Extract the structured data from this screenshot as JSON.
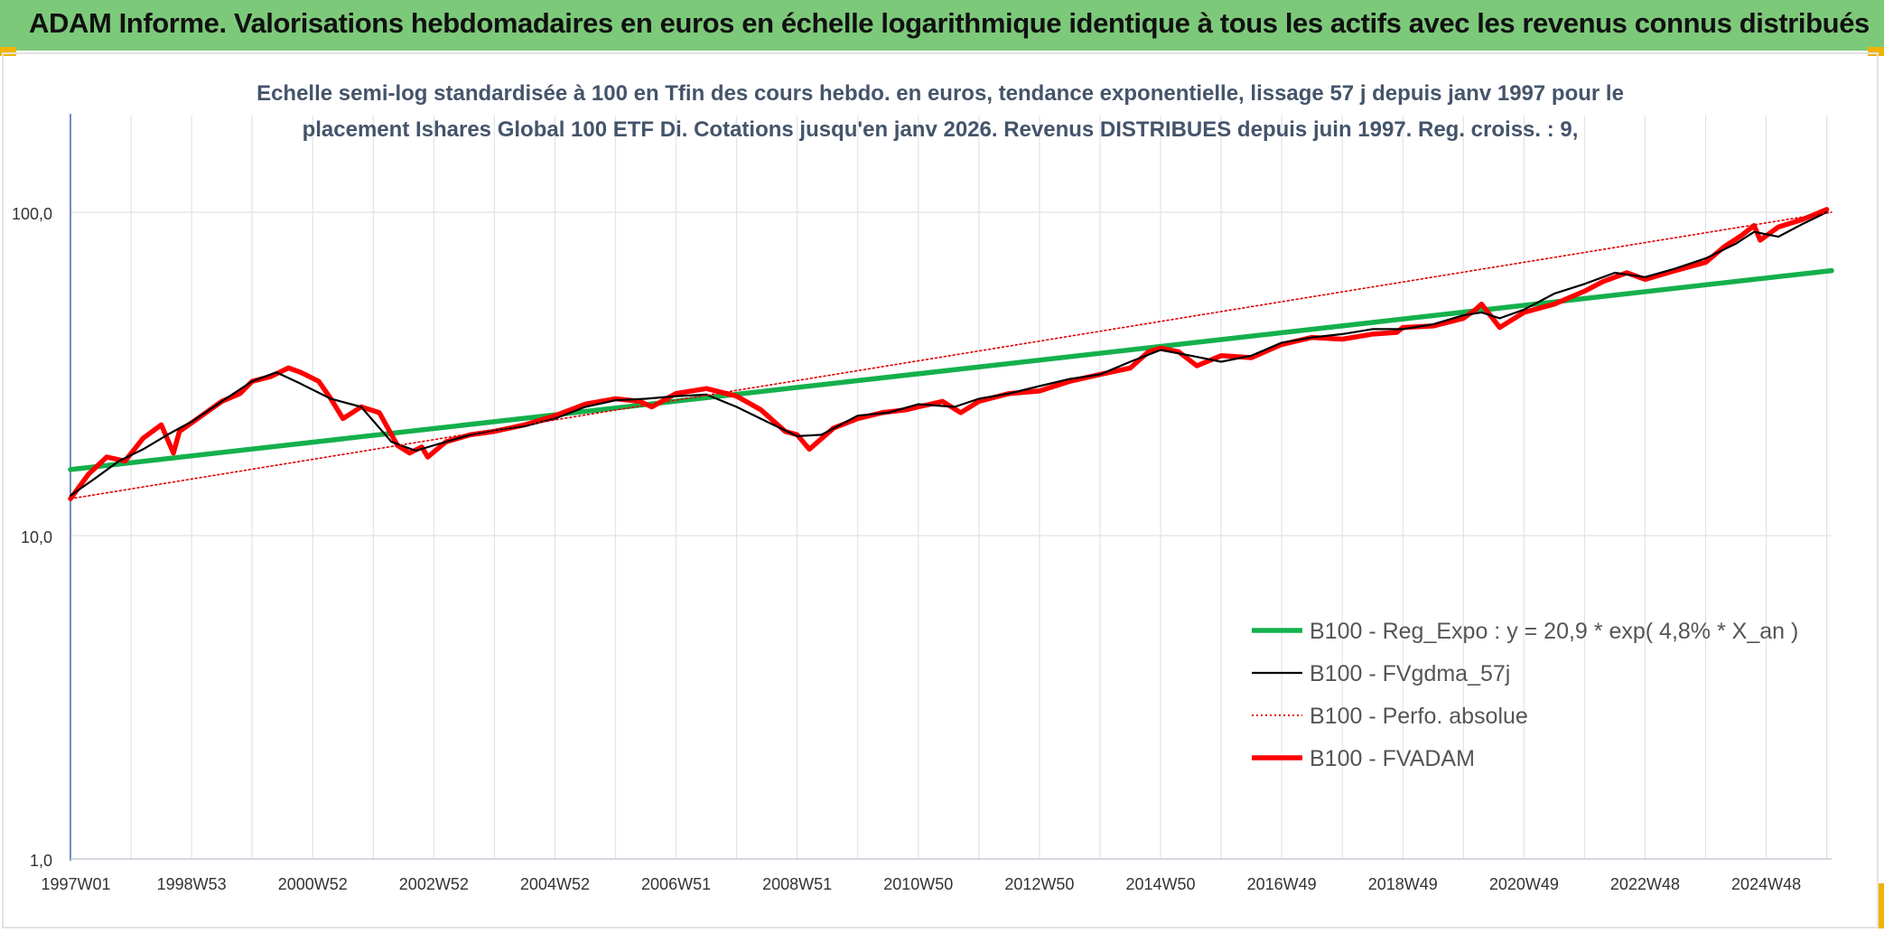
{
  "banner": {
    "title": "ADAM Informe. Valorisations hebdomadaires en euros en échelle logarithmique identique à tous les actifs avec les revenus connus distribués"
  },
  "colors": {
    "banner_bg": "#7dc97a",
    "corner_accent": "#f0b400",
    "regression": "#14b04c",
    "fvgdma": "#000000",
    "perfo": "#e00000",
    "fvadam": "#ff0000"
  },
  "chart_data": {
    "type": "line",
    "title_lines": [
      "Echelle semi-log standardisée à 100 en Tfin des cours hebdo. en euros, tendance exponentielle, lissage 57 j depuis janv 1997 pour le",
      "placement Ishares Global 100 ETF Di. Cotations jusqu'en janv 2026. Revenus DISTRIBUES depuis juin 1997. Reg. croiss. : 9,"
    ],
    "y_scale": "log",
    "ylim": [
      1,
      180
    ],
    "yticks": [
      {
        "value": 1,
        "label": "1,0"
      },
      {
        "value": 10,
        "label": "10,0"
      },
      {
        "value": 100,
        "label": "100,0"
      }
    ],
    "xlim": [
      1997.0,
      2026.08
    ],
    "xticks": [
      {
        "value": 1997.0,
        "label": "1997W01"
      },
      {
        "value": 1999.0,
        "label": "1998W53"
      },
      {
        "value": 2001.0,
        "label": "2000W52"
      },
      {
        "value": 2003.0,
        "label": "2002W52"
      },
      {
        "value": 2005.0,
        "label": "2004W52"
      },
      {
        "value": 2007.0,
        "label": "2006W51"
      },
      {
        "value": 2009.0,
        "label": "2008W51"
      },
      {
        "value": 2011.0,
        "label": "2010W50"
      },
      {
        "value": 2013.0,
        "label": "2012W50"
      },
      {
        "value": 2015.0,
        "label": "2014W50"
      },
      {
        "value": 2017.0,
        "label": "2016W49"
      },
      {
        "value": 2019.0,
        "label": "2018W49"
      },
      {
        "value": 2021.0,
        "label": "2020W49"
      },
      {
        "value": 2023.0,
        "label": "2022W48"
      },
      {
        "value": 2025.0,
        "label": "2024W48"
      }
    ],
    "grid": "vertical and horizontal",
    "legend_position": "bottom-right",
    "series": [
      {
        "name": "B100 - Reg_Expo : y = 20,9 * exp( 4,8% *  X_an )",
        "style": "thick-solid",
        "color_key": "regression",
        "x": [
          1997.0,
          2026.08
        ],
        "y": [
          16.0,
          66.0
        ]
      },
      {
        "name": "B100 - FVgdma_57j",
        "style": "thin-solid",
        "color_key": "fvgdma",
        "x": [
          1997.0,
          1997.4,
          1997.8,
          1998.2,
          1998.6,
          1999.0,
          1999.5,
          2000.0,
          2000.4,
          2000.8,
          2001.3,
          2001.8,
          2002.3,
          2002.7,
          2003.2,
          2003.6,
          2004.0,
          2004.5,
          2005.0,
          2005.5,
          2006.0,
          2006.5,
          2007.0,
          2007.5,
          2008.0,
          2008.5,
          2009.0,
          2009.4,
          2010.0,
          2010.5,
          2011.0,
          2011.6,
          2012.0,
          2012.5,
          2013.0,
          2013.5,
          2014.0,
          2014.5,
          2015.0,
          2015.5,
          2016.0,
          2016.5,
          2017.0,
          2017.5,
          2018.0,
          2018.5,
          2019.0,
          2019.5,
          2020.0,
          2020.3,
          2020.6,
          2021.0,
          2021.5,
          2022.0,
          2022.5,
          2023.0,
          2023.5,
          2024.0,
          2024.5,
          2024.8,
          2025.2,
          2025.6,
          2026.0
        ],
        "y": [
          13.3,
          15.0,
          17.0,
          18.5,
          20.5,
          22.5,
          26.0,
          30.0,
          32.0,
          29.5,
          26.5,
          25.0,
          19.5,
          18.3,
          19.5,
          20.5,
          21.2,
          21.8,
          23.0,
          25.0,
          26.2,
          26.5,
          27.0,
          27.3,
          25.0,
          22.5,
          20.3,
          20.5,
          23.5,
          24.0,
          25.5,
          25.0,
          26.5,
          27.5,
          29.0,
          30.5,
          31.5,
          34.5,
          37.5,
          36.0,
          34.5,
          36.0,
          39.5,
          41.0,
          42.0,
          43.5,
          43.5,
          45.0,
          48.0,
          49.0,
          47.0,
          50.0,
          56.0,
          60.0,
          65.0,
          63.0,
          67.0,
          72.0,
          80.0,
          87.0,
          84.0,
          92.0,
          100.0
        ]
      },
      {
        "name": "B100 - Perfo. absolue",
        "style": "dotted",
        "color_key": "perfo",
        "x": [
          1997.0,
          2026.08
        ],
        "y": [
          13.0,
          100.0
        ]
      },
      {
        "name": "B100 - FVADAM",
        "style": "thick-solid",
        "color_key": "fvadam",
        "x": [
          1997.0,
          1997.3,
          1997.6,
          1997.9,
          1998.2,
          1998.5,
          1998.7,
          1998.8,
          1999.1,
          1999.5,
          1999.8,
          2000.0,
          2000.3,
          2000.6,
          2000.8,
          2001.1,
          2001.3,
          2001.5,
          2001.8,
          2002.1,
          2002.4,
          2002.6,
          2002.8,
          2002.9,
          2003.2,
          2003.6,
          2004.0,
          2004.5,
          2005.0,
          2005.5,
          2006.0,
          2006.4,
          2006.6,
          2007.0,
          2007.5,
          2008.0,
          2008.4,
          2008.8,
          2009.0,
          2009.2,
          2009.6,
          2010.0,
          2010.4,
          2010.8,
          2011.0,
          2011.4,
          2011.7,
          2012.0,
          2012.5,
          2013.0,
          2013.5,
          2014.0,
          2014.5,
          2014.8,
          2015.0,
          2015.3,
          2015.6,
          2016.0,
          2016.5,
          2017.0,
          2017.5,
          2018.0,
          2018.5,
          2018.9,
          2019.0,
          2019.5,
          2020.0,
          2020.2,
          2020.3,
          2020.6,
          2021.0,
          2021.5,
          2022.0,
          2022.3,
          2022.7,
          2023.0,
          2023.5,
          2024.0,
          2024.3,
          2024.6,
          2024.8,
          2024.9,
          2025.2,
          2025.6,
          2026.0
        ],
        "y": [
          13.0,
          15.5,
          17.5,
          17.0,
          20.0,
          22.0,
          18.0,
          21.0,
          23.0,
          26.0,
          27.5,
          30.0,
          31.0,
          33.0,
          32.0,
          30.0,
          26.5,
          23.0,
          25.0,
          24.0,
          19.0,
          18.0,
          18.8,
          17.5,
          19.5,
          20.5,
          21.0,
          22.0,
          23.5,
          25.5,
          26.5,
          26.0,
          25.0,
          27.5,
          28.5,
          27.0,
          24.5,
          21.0,
          20.5,
          18.5,
          21.5,
          23.0,
          24.0,
          24.5,
          25.0,
          26.0,
          24.0,
          26.0,
          27.5,
          28.0,
          30.0,
          31.5,
          33.0,
          37.0,
          38.0,
          37.0,
          33.5,
          36.0,
          35.5,
          39.0,
          41.0,
          40.5,
          42.0,
          42.5,
          44.0,
          44.5,
          47.0,
          50.0,
          52.0,
          44.0,
          49.0,
          52.0,
          57.0,
          61.0,
          65.0,
          62.0,
          66.0,
          70.0,
          78.0,
          85.0,
          91.0,
          82.0,
          90.0,
          95.0,
          102.0
        ]
      }
    ]
  }
}
